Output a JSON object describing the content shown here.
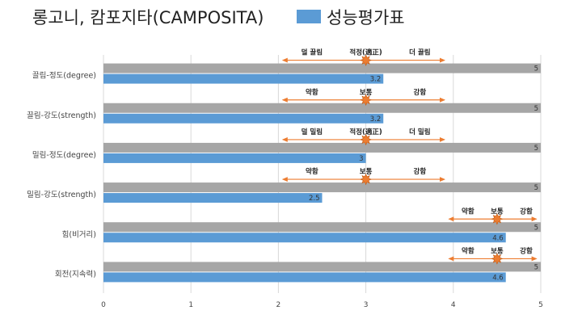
{
  "title": "롱고니, 캄포지타(CAMPOSITA)",
  "legend": {
    "label": "성능평가표",
    "color": "#5b9bd5"
  },
  "chart_data": {
    "type": "bar",
    "orientation": "horizontal",
    "categories": [
      "끌림-정도(degree)",
      "끌림-강도(strength)",
      "밀림-정도(degree)",
      "밀림-강도(strength)",
      "힘(비거리)",
      "회전(지속력)"
    ],
    "series": [
      {
        "name": "",
        "color": "#a6a6a6",
        "values": [
          5,
          5,
          5,
          5,
          5,
          5
        ]
      },
      {
        "name": "성능평가표",
        "color": "#5b9bd5",
        "values": [
          3.2,
          3.2,
          3,
          2.5,
          4.6,
          4.6
        ]
      }
    ],
    "xlim": [
      0,
      5
    ],
    "xticks": [
      0,
      1,
      2,
      3,
      4,
      5
    ],
    "grid": true,
    "legend_position": "top",
    "annotations": [
      {
        "row": 0,
        "left_label": "덜 끌림",
        "center_label": "적정(適正)",
        "right_label": "더 끌림",
        "marker_x": 3,
        "arrow_from": 2.05,
        "arrow_to": 3.9
      },
      {
        "row": 1,
        "left_label": "약함",
        "center_label": "보통",
        "right_label": "강함",
        "marker_x": 3,
        "arrow_from": 2.05,
        "arrow_to": 3.9
      },
      {
        "row": 2,
        "left_label": "덜 밀림",
        "center_label": "적정(適正)",
        "right_label": "더 밀림",
        "marker_x": 3,
        "arrow_from": 2.05,
        "arrow_to": 3.9
      },
      {
        "row": 3,
        "left_label": "약함",
        "center_label": "보통",
        "right_label": "강함",
        "marker_x": 3,
        "arrow_from": 2.05,
        "arrow_to": 3.9
      },
      {
        "row": 4,
        "left_label": "약함",
        "center_label": "보통",
        "right_label": "강함",
        "marker_x": 4.5,
        "arrow_from": 3.95,
        "arrow_to": 4.95
      },
      {
        "row": 5,
        "left_label": "약함",
        "center_label": "보통",
        "right_label": "강함",
        "marker_x": 4.5,
        "arrow_from": 3.95,
        "arrow_to": 4.95
      }
    ],
    "annotation_color": "#ed7d31"
  }
}
